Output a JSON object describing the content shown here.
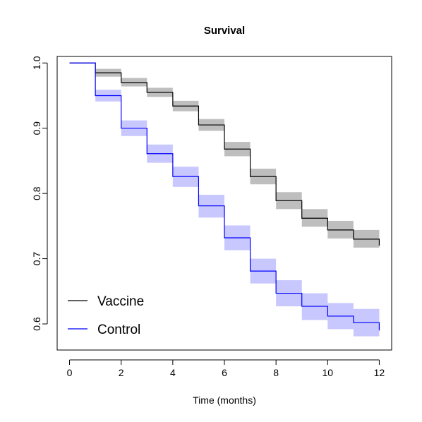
{
  "chart_data": {
    "type": "line",
    "title": "Survival",
    "xlabel": "Time (months)",
    "ylabel": "",
    "xlim": [
      0,
      12
    ],
    "ylim": [
      0.56,
      1.01
    ],
    "xticks": [
      "0",
      "2",
      "4",
      "6",
      "8",
      "10",
      "12"
    ],
    "yticks": [
      "0.6",
      "0.7",
      "0.8",
      "0.9",
      "1.0"
    ],
    "legend_position": "bottom-left",
    "grid": false,
    "step": true,
    "series": [
      {
        "name": "Vaccine",
        "color": "#000000",
        "band_color": "#bebebe",
        "x": [
          0,
          1,
          2,
          3,
          4,
          5,
          6,
          7,
          8,
          9,
          10,
          11,
          12
        ],
        "values": [
          1.0,
          0.985,
          0.97,
          0.955,
          0.934,
          0.905,
          0.868,
          0.826,
          0.789,
          0.762,
          0.744,
          0.73,
          0.72
        ],
        "lower": [
          1.0,
          0.979,
          0.964,
          0.948,
          0.926,
          0.896,
          0.857,
          0.814,
          0.776,
          0.749,
          0.731,
          0.717,
          0.717
        ],
        "upper": [
          1.0,
          0.991,
          0.977,
          0.962,
          0.942,
          0.914,
          0.879,
          0.838,
          0.802,
          0.776,
          0.758,
          0.744,
          0.744
        ]
      },
      {
        "name": "Control",
        "color": "#0000ff",
        "band_color": "#c8c8ff",
        "x": [
          0,
          1,
          2,
          3,
          4,
          5,
          6,
          7,
          8,
          9,
          10,
          11,
          12
        ],
        "values": [
          1.0,
          0.95,
          0.9,
          0.861,
          0.826,
          0.781,
          0.732,
          0.681,
          0.647,
          0.627,
          0.612,
          0.602,
          0.59
        ],
        "lower": [
          1.0,
          0.941,
          0.888,
          0.847,
          0.81,
          0.763,
          0.713,
          0.662,
          0.627,
          0.606,
          0.592,
          0.581,
          0.581
        ],
        "upper": [
          1.0,
          0.959,
          0.912,
          0.875,
          0.841,
          0.798,
          0.751,
          0.7,
          0.667,
          0.647,
          0.632,
          0.623,
          0.623
        ]
      }
    ]
  }
}
